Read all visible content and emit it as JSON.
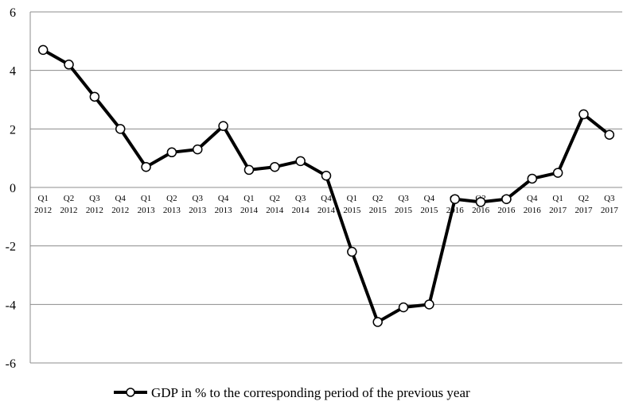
{
  "chart_data": {
    "type": "line",
    "title": "",
    "xlabel": "",
    "ylabel": "",
    "ylim": [
      -6,
      6
    ],
    "yticks": [
      6,
      4,
      2,
      0,
      -2,
      -4,
      -6
    ],
    "ytick_labels": [
      "6",
      "4",
      "2",
      "0",
      "-2",
      "-4",
      "-6"
    ],
    "grid": "horizontal",
    "legend_position": "bottom",
    "categories": [
      {
        "q": "Q1",
        "y": "2012"
      },
      {
        "q": "Q2",
        "y": "2012"
      },
      {
        "q": "Q3",
        "y": "2012"
      },
      {
        "q": "Q4",
        "y": "2012"
      },
      {
        "q": "Q1",
        "y": "2013"
      },
      {
        "q": "Q2",
        "y": "2013"
      },
      {
        "q": "Q3",
        "y": "2013"
      },
      {
        "q": "Q4",
        "y": "2013"
      },
      {
        "q": "Q1",
        "y": "2014"
      },
      {
        "q": "Q2",
        "y": "2014"
      },
      {
        "q": "Q3",
        "y": "2014"
      },
      {
        "q": "Q4",
        "y": "2014"
      },
      {
        "q": "Q1",
        "y": "2015"
      },
      {
        "q": "Q2",
        "y": "2015"
      },
      {
        "q": "Q3",
        "y": "2015"
      },
      {
        "q": "Q4",
        "y": "2015"
      },
      {
        "q": "Q1",
        "y": "2016"
      },
      {
        "q": "Q2",
        "y": "2016"
      },
      {
        "q": "Q3",
        "y": "2016"
      },
      {
        "q": "Q4",
        "y": "2016"
      },
      {
        "q": "Q1",
        "y": "2017"
      },
      {
        "q": "Q2",
        "y": "2017"
      },
      {
        "q": "Q3",
        "y": "2017"
      }
    ],
    "series": [
      {
        "name": "GDP in % to the corresponding period of the previous year",
        "color": "#000000",
        "values": [
          4.7,
          4.2,
          3.1,
          2.0,
          0.7,
          1.2,
          1.3,
          2.1,
          0.6,
          0.7,
          0.9,
          0.4,
          -2.2,
          -4.6,
          -4.1,
          -4.0,
          -0.4,
          -0.5,
          -0.4,
          0.3,
          0.5,
          2.5,
          1.8
        ]
      }
    ]
  }
}
